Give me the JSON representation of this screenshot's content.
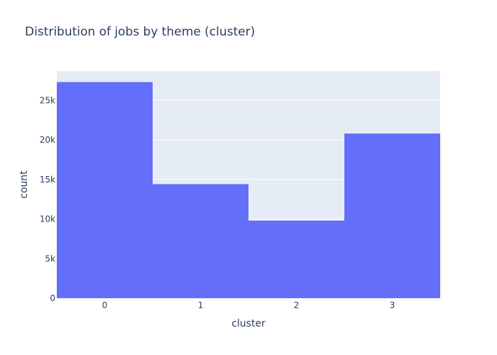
{
  "chart_data": {
    "type": "bar",
    "title": "Distribution of jobs by theme (cluster)",
    "xlabel": "cluster",
    "ylabel": "count",
    "categories": [
      "0",
      "1",
      "2",
      "3"
    ],
    "values": [
      27300,
      14400,
      9800,
      20800
    ],
    "ylim": [
      0,
      28700
    ],
    "yticks": [
      0,
      5000,
      10000,
      15000,
      20000,
      25000
    ],
    "ytick_labels": [
      "0",
      "5k",
      "10k",
      "15k",
      "20k",
      "25k"
    ],
    "grid": true,
    "bar_color": "#636efa",
    "plot_background": "#e5ecf6",
    "text_color": "#2a3f5f"
  }
}
